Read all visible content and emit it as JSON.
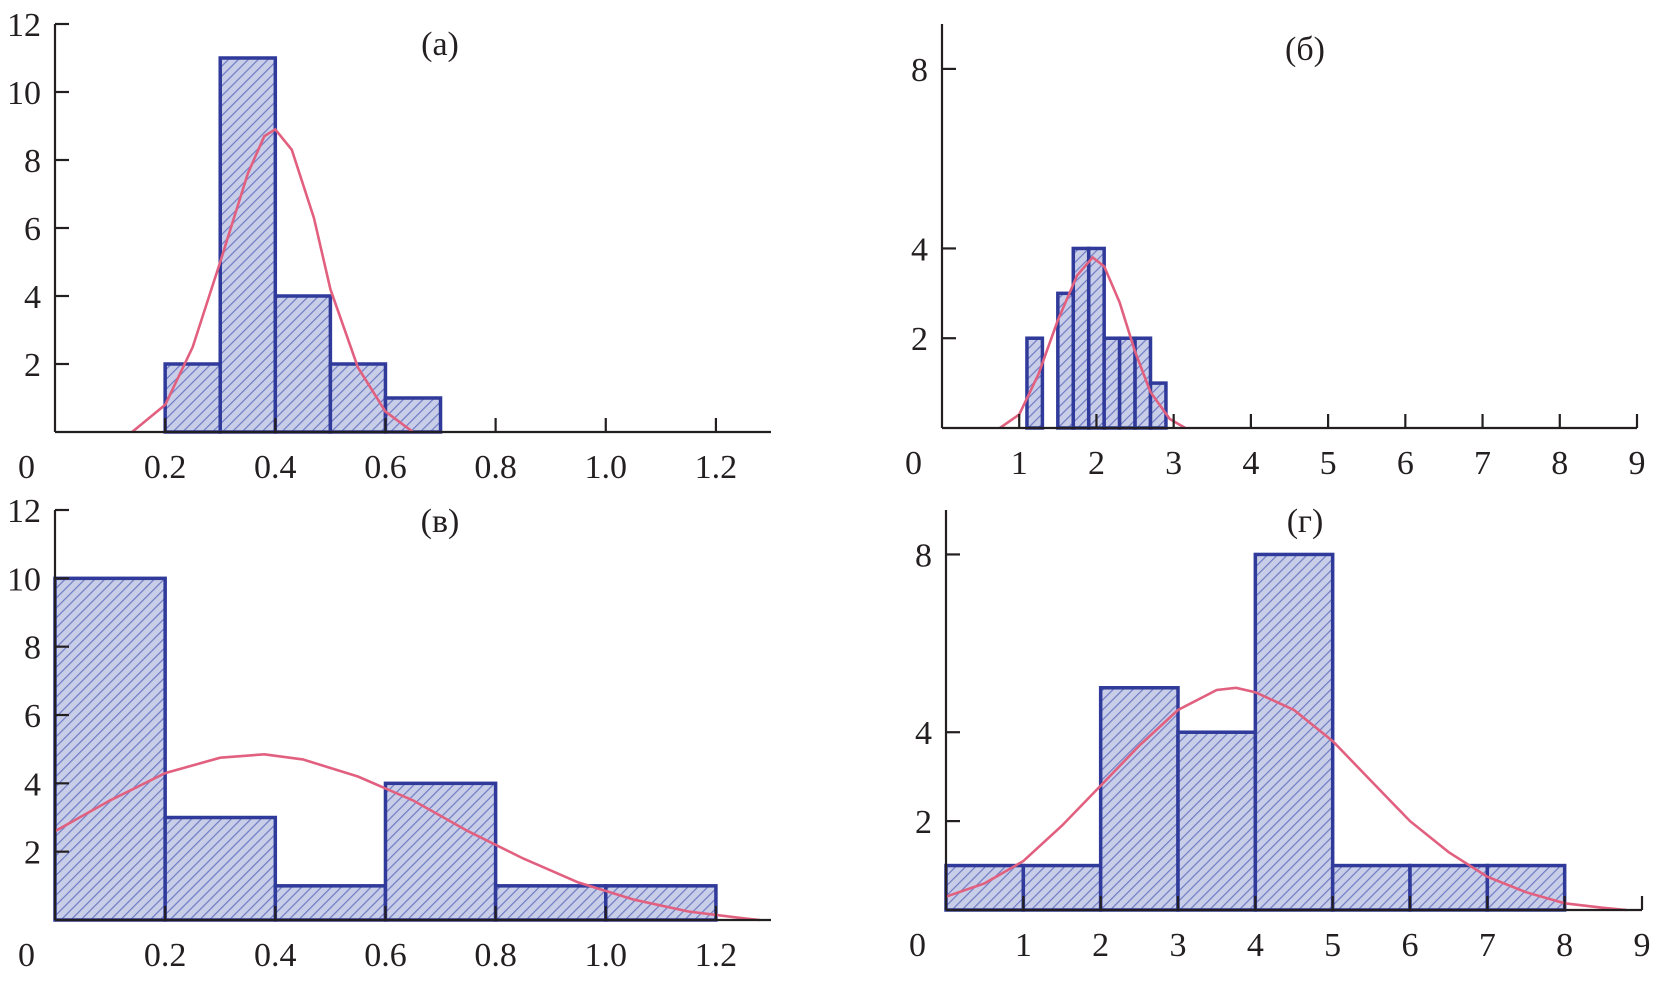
{
  "colors": {
    "bar_fill": "#c8cde8",
    "bar_hatch": "#6f7bc4",
    "bar_edge": "#2f3a9a",
    "curve": "#e2607f",
    "axis": "#231f20"
  },
  "chart_data": [
    {
      "type": "bar",
      "label": "(a)",
      "bins": [
        [
          0.2,
          0.3
        ],
        [
          0.3,
          0.4
        ],
        [
          0.4,
          0.5
        ],
        [
          0.5,
          0.6
        ],
        [
          0.6,
          0.7
        ]
      ],
      "values": [
        2,
        11,
        4,
        2,
        1
      ],
      "xlim": [
        0,
        1.3
      ],
      "ylim": [
        0,
        12
      ],
      "xticks": [
        0.2,
        0.4,
        0.6,
        0.8,
        1.0,
        1.2
      ],
      "xtick_labels": [
        "0.2",
        "0.4",
        "0.6",
        "0.8",
        "1.0",
        "1.2"
      ],
      "yticks": [
        2,
        4,
        6,
        8,
        10,
        12
      ],
      "ytick_labels": [
        "2",
        "4",
        "6",
        "8",
        "10",
        "12"
      ],
      "origin_label": "0",
      "fit_curve": {
        "x": [
          0.14,
          0.2,
          0.25,
          0.3,
          0.35,
          0.38,
          0.4,
          0.43,
          0.47,
          0.5,
          0.55,
          0.6,
          0.65
        ],
        "y": [
          0,
          0.8,
          2.5,
          5.0,
          7.6,
          8.7,
          8.9,
          8.3,
          6.3,
          4.2,
          1.9,
          0.6,
          0
        ]
      },
      "grid": false
    },
    {
      "type": "bar",
      "label": "(б)",
      "bins": [
        [
          1.1,
          1.3
        ],
        [
          1.5,
          1.7
        ],
        [
          1.7,
          1.9
        ],
        [
          1.9,
          2.1
        ],
        [
          2.1,
          2.3
        ],
        [
          2.3,
          2.5
        ],
        [
          2.5,
          2.7
        ],
        [
          2.7,
          2.9
        ]
      ],
      "values": [
        2,
        3,
        4,
        4,
        2,
        2,
        2,
        1
      ],
      "xlim": [
        0,
        9
      ],
      "ylim": [
        0,
        9
      ],
      "xticks": [
        1,
        2,
        3,
        4,
        5,
        6,
        7,
        8,
        9
      ],
      "xtick_labels": [
        "1",
        "2",
        "3",
        "4",
        "5",
        "6",
        "7",
        "8",
        "9"
      ],
      "yticks": [
        2,
        4,
        8
      ],
      "ytick_labels": [
        "2",
        "4",
        "8"
      ],
      "origin_label": "0",
      "fit_curve": {
        "x": [
          0.75,
          1.0,
          1.25,
          1.5,
          1.75,
          1.95,
          2.1,
          2.3,
          2.5,
          2.7,
          2.95,
          3.15
        ],
        "y": [
          0,
          0.3,
          1.2,
          2.4,
          3.4,
          3.8,
          3.6,
          2.8,
          1.7,
          0.8,
          0.2,
          0
        ]
      },
      "grid": false
    },
    {
      "type": "bar",
      "label": "(в)",
      "bins": [
        [
          0,
          0.2
        ],
        [
          0.2,
          0.4
        ],
        [
          0.4,
          0.6
        ],
        [
          0.6,
          0.8
        ],
        [
          0.8,
          1.0
        ],
        [
          1.0,
          1.2
        ]
      ],
      "values": [
        10,
        3,
        1,
        4,
        1,
        1
      ],
      "xlim": [
        0,
        1.3
      ],
      "ylim": [
        0,
        12
      ],
      "xticks": [
        0.2,
        0.4,
        0.6,
        0.8,
        1.0,
        1.2
      ],
      "xtick_labels": [
        "0.2",
        "0.4",
        "0.6",
        "0.8",
        "1.0",
        "1.2"
      ],
      "yticks": [
        2,
        4,
        6,
        8,
        10,
        12
      ],
      "ytick_labels": [
        "2",
        "4",
        "6",
        "8",
        "10",
        "12"
      ],
      "origin_label": "0",
      "fit_curve": {
        "x": [
          0,
          0.1,
          0.2,
          0.3,
          0.38,
          0.45,
          0.55,
          0.65,
          0.75,
          0.85,
          0.95,
          1.05,
          1.15,
          1.25,
          1.28
        ],
        "y": [
          2.6,
          3.5,
          4.3,
          4.75,
          4.85,
          4.7,
          4.2,
          3.5,
          2.6,
          1.8,
          1.1,
          0.6,
          0.25,
          0.05,
          0
        ]
      },
      "grid": false
    },
    {
      "type": "bar",
      "label": "(г)",
      "bins": [
        [
          0,
          1
        ],
        [
          1,
          2
        ],
        [
          2,
          3
        ],
        [
          3,
          4
        ],
        [
          4,
          5
        ],
        [
          5,
          6
        ],
        [
          6,
          7
        ],
        [
          7,
          8
        ]
      ],
      "values": [
        1,
        1,
        5,
        4,
        8,
        1,
        1,
        1
      ],
      "xlim": [
        0,
        9
      ],
      "ylim": [
        0,
        9
      ],
      "xticks": [
        1,
        2,
        3,
        4,
        5,
        6,
        7,
        8,
        9
      ],
      "xtick_labels": [
        "1",
        "2",
        "3",
        "4",
        "5",
        "6",
        "7",
        "8",
        "9"
      ],
      "yticks": [
        2,
        4,
        8
      ],
      "ytick_labels": [
        "2",
        "4",
        "8"
      ],
      "origin_label": "0",
      "fit_curve": {
        "x": [
          0,
          0.5,
          1,
          1.5,
          2,
          2.5,
          3,
          3.5,
          3.75,
          4,
          4.5,
          5,
          5.5,
          6,
          6.5,
          7,
          7.5,
          8,
          8.5,
          8.8
        ],
        "y": [
          0.3,
          0.6,
          1.1,
          1.9,
          2.8,
          3.7,
          4.5,
          4.95,
          5.0,
          4.9,
          4.5,
          3.8,
          2.9,
          2.0,
          1.3,
          0.75,
          0.4,
          0.15,
          0.05,
          0
        ]
      },
      "grid": false
    }
  ]
}
